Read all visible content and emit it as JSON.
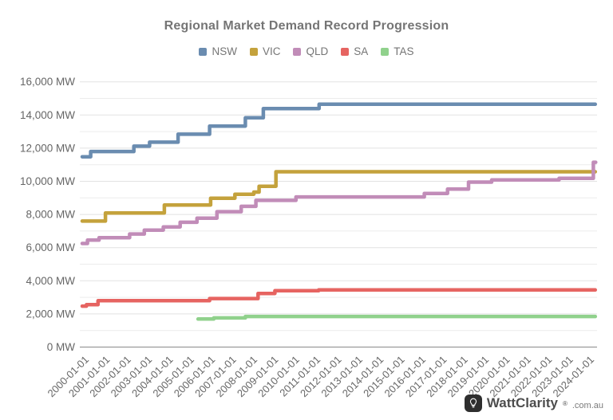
{
  "page": {
    "background": "#ffffff",
    "footer": {
      "brand": "WattClarity",
      "registered_mark": "®",
      "suffix": ".com.au",
      "icon": "lightbulb-icon",
      "badge_color": "#2e2e2e"
    }
  },
  "chart_data": {
    "type": "line",
    "subtype": "step-record-progression",
    "title": "Regional Market Demand Record Progression",
    "title_color": "#757575",
    "legend_position": "top",
    "legend_entries": [
      "NSW",
      "VIC",
      "QLD",
      "SA",
      "TAS"
    ],
    "grid": true,
    "x_axis": {
      "range_years": [
        1999.85,
        2024.3
      ],
      "labels": [
        "2000-01-01",
        "2001-01-01",
        "2002-01-01",
        "2003-01-01",
        "2004-01-01",
        "2005-01-01",
        "2006-01-01",
        "2007-01-01",
        "2008-01-01",
        "2009-01-01",
        "2010-01-01",
        "2011-01-01",
        "2012-01-01",
        "2013-01-01",
        "2014-01-01",
        "2015-01-01",
        "2016-01-01",
        "2017-01-01",
        "2018-01-01",
        "2019-01-01",
        "2020-01-01",
        "2021-01-01",
        "2022-01-01",
        "2023-01-01",
        "2024-01-01"
      ]
    },
    "y_axis": {
      "unit": "MW",
      "min": 0,
      "max": 16000,
      "major_step": 2000,
      "minor_step": 1000,
      "ticks": [
        {
          "value": 0,
          "label": "0 MW"
        },
        {
          "value": 2000,
          "label": "2,000 MW"
        },
        {
          "value": 4000,
          "label": "4,000 MW"
        },
        {
          "value": 6000,
          "label": "6,000 MW"
        },
        {
          "value": 8000,
          "label": "8,000 MW"
        },
        {
          "value": 10000,
          "label": "10,000 MW"
        },
        {
          "value": 12000,
          "label": "12,000 MW"
        },
        {
          "value": 14000,
          "label": "14,000 MW"
        },
        {
          "value": 16000,
          "label": "16,000 MW"
        }
      ]
    },
    "series": [
      {
        "name": "NSW",
        "color": "#6a8cb0",
        "points": [
          [
            1999.85,
            11480
          ],
          [
            2000.25,
            11800
          ],
          [
            2002.3,
            12120
          ],
          [
            2003.05,
            12360
          ],
          [
            2004.4,
            12840
          ],
          [
            2005.9,
            13330
          ],
          [
            2007.6,
            13830
          ],
          [
            2008.45,
            14390
          ],
          [
            2011.1,
            14650
          ],
          [
            2024.22,
            14650
          ]
        ]
      },
      {
        "name": "VIC",
        "color": "#c4a23c",
        "points": [
          [
            1999.85,
            7600
          ],
          [
            2000.95,
            8090
          ],
          [
            2003.75,
            8570
          ],
          [
            2005.95,
            8980
          ],
          [
            2007.1,
            9220
          ],
          [
            2008.0,
            9350
          ],
          [
            2008.25,
            9700
          ],
          [
            2009.05,
            10576
          ],
          [
            2024.22,
            10576
          ]
        ]
      },
      {
        "name": "QLD",
        "color": "#c18cb8",
        "points": [
          [
            1999.85,
            6250
          ],
          [
            2000.1,
            6450
          ],
          [
            2000.65,
            6600
          ],
          [
            2002.1,
            6820
          ],
          [
            2002.8,
            7060
          ],
          [
            2003.7,
            7250
          ],
          [
            2004.5,
            7530
          ],
          [
            2005.3,
            7780
          ],
          [
            2006.25,
            8170
          ],
          [
            2007.4,
            8490
          ],
          [
            2008.1,
            8850
          ],
          [
            2010.0,
            9060
          ],
          [
            2016.1,
            9270
          ],
          [
            2017.2,
            9530
          ],
          [
            2018.2,
            9950
          ],
          [
            2019.3,
            10080
          ],
          [
            2022.5,
            10180
          ],
          [
            2024.13,
            11150
          ],
          [
            2024.24,
            11150
          ]
        ]
      },
      {
        "name": "SA",
        "color": "#e66461",
        "points": [
          [
            1999.85,
            2470
          ],
          [
            2000.05,
            2560
          ],
          [
            2000.6,
            2800
          ],
          [
            2005.9,
            2930
          ],
          [
            2008.2,
            3235
          ],
          [
            2009.0,
            3400
          ],
          [
            2011.08,
            3445
          ],
          [
            2024.22,
            3445
          ]
        ]
      },
      {
        "name": "TAS",
        "color": "#90d18c",
        "points": [
          [
            2005.35,
            1690
          ],
          [
            2006.1,
            1760
          ],
          [
            2007.6,
            1845
          ],
          [
            2024.22,
            1845
          ]
        ]
      }
    ]
  }
}
